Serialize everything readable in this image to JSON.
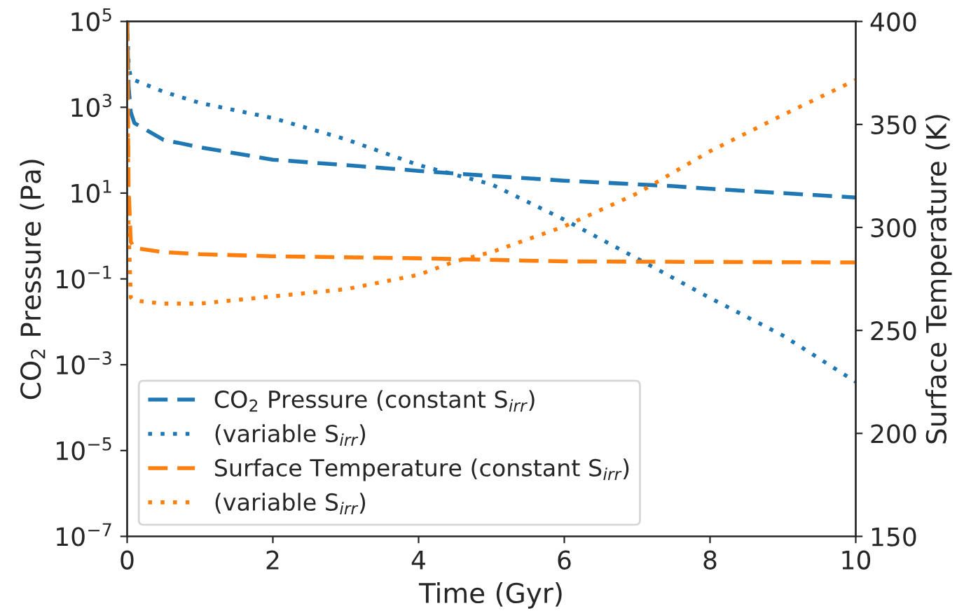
{
  "chart_data": {
    "type": "line",
    "xlabel": "Time (Gyr)",
    "ylabel": "CO$_{2}$ Pressure (Pa)",
    "y2label": "Surface Temperature (K)",
    "log": "y",
    "grid": false,
    "legend": "bottom left",
    "marker": "none",
    "xlim": [
      0,
      10
    ],
    "xticks": [
      0,
      2,
      4,
      6,
      8,
      10
    ],
    "ylim": [
      1e-07,
      100000.0
    ],
    "yticks": [
      {
        "value": 1e-07,
        "label": "10$^{−7}$"
      },
      {
        "value": 1e-05,
        "label": "10$^{−5}$"
      },
      {
        "value": 0.001,
        "label": "10$^{−3}$"
      },
      {
        "value": 0.1,
        "label": "10$^{−1}$"
      },
      {
        "value": 10,
        "label": "10$^{1}$"
      },
      {
        "value": 1000,
        "label": "10$^{3}$"
      },
      {
        "value": 100000,
        "label": "10$^{5}$"
      }
    ],
    "y2lim": [
      150,
      400
    ],
    "y2ticks": [
      150,
      200,
      250,
      300,
      350,
      400
    ],
    "series": [
      {
        "name": "CO$_{2}$ Pressure (constant S$_{irr}$)",
        "color": "#1f77b4",
        "line_style": "dashed",
        "x": [
          0,
          0.02,
          0.05,
          0.1,
          0.5,
          1,
          2,
          3,
          4,
          5,
          6,
          7.5,
          8,
          10
        ],
        "values": [
          100000,
          3000,
          776,
          427,
          174,
          117,
          60,
          45,
          33,
          25,
          19.5,
          14.5,
          12.6,
          7.9
        ]
      },
      {
        "name": "(variable S$_{irr}$)",
        "color": "#1f77b4",
        "line_style": "dotted",
        "x": [
          0,
          0.02,
          0.05,
          0.1,
          0.5,
          1,
          2,
          3,
          4,
          5,
          6,
          7,
          8,
          9,
          10
        ],
        "values": [
          100000,
          10000,
          4700,
          4300,
          2300,
          1260,
          560,
          180,
          45,
          16,
          2.4,
          0.3,
          0.036,
          0.0048,
          0.0004
        ]
      },
      {
        "name": "Surface Temperature (constant S$_{irr}$)",
        "color": "#ff7f0e",
        "line_style": "dashed",
        "axis": "y2",
        "x": [
          0,
          0.02,
          0.05,
          0.1,
          0.5,
          1,
          2,
          4,
          6,
          10
        ],
        "values": [
          400,
          320,
          293,
          290,
          288,
          287,
          286,
          285,
          283.5,
          283
        ]
      },
      {
        "name": "(variable S$_{irr}$)",
        "color": "#ff7f0e",
        "line_style": "dotted",
        "axis": "y2",
        "x": [
          0,
          0.02,
          0.05,
          0.1,
          0.5,
          1,
          2,
          3,
          4,
          4.5,
          5,
          6,
          7,
          8,
          9,
          10
        ],
        "values": [
          400,
          300,
          266,
          264.5,
          263,
          263,
          266.5,
          270,
          277,
          283.5,
          288,
          300.5,
          316.5,
          337,
          354.6,
          371.6
        ]
      }
    ]
  }
}
